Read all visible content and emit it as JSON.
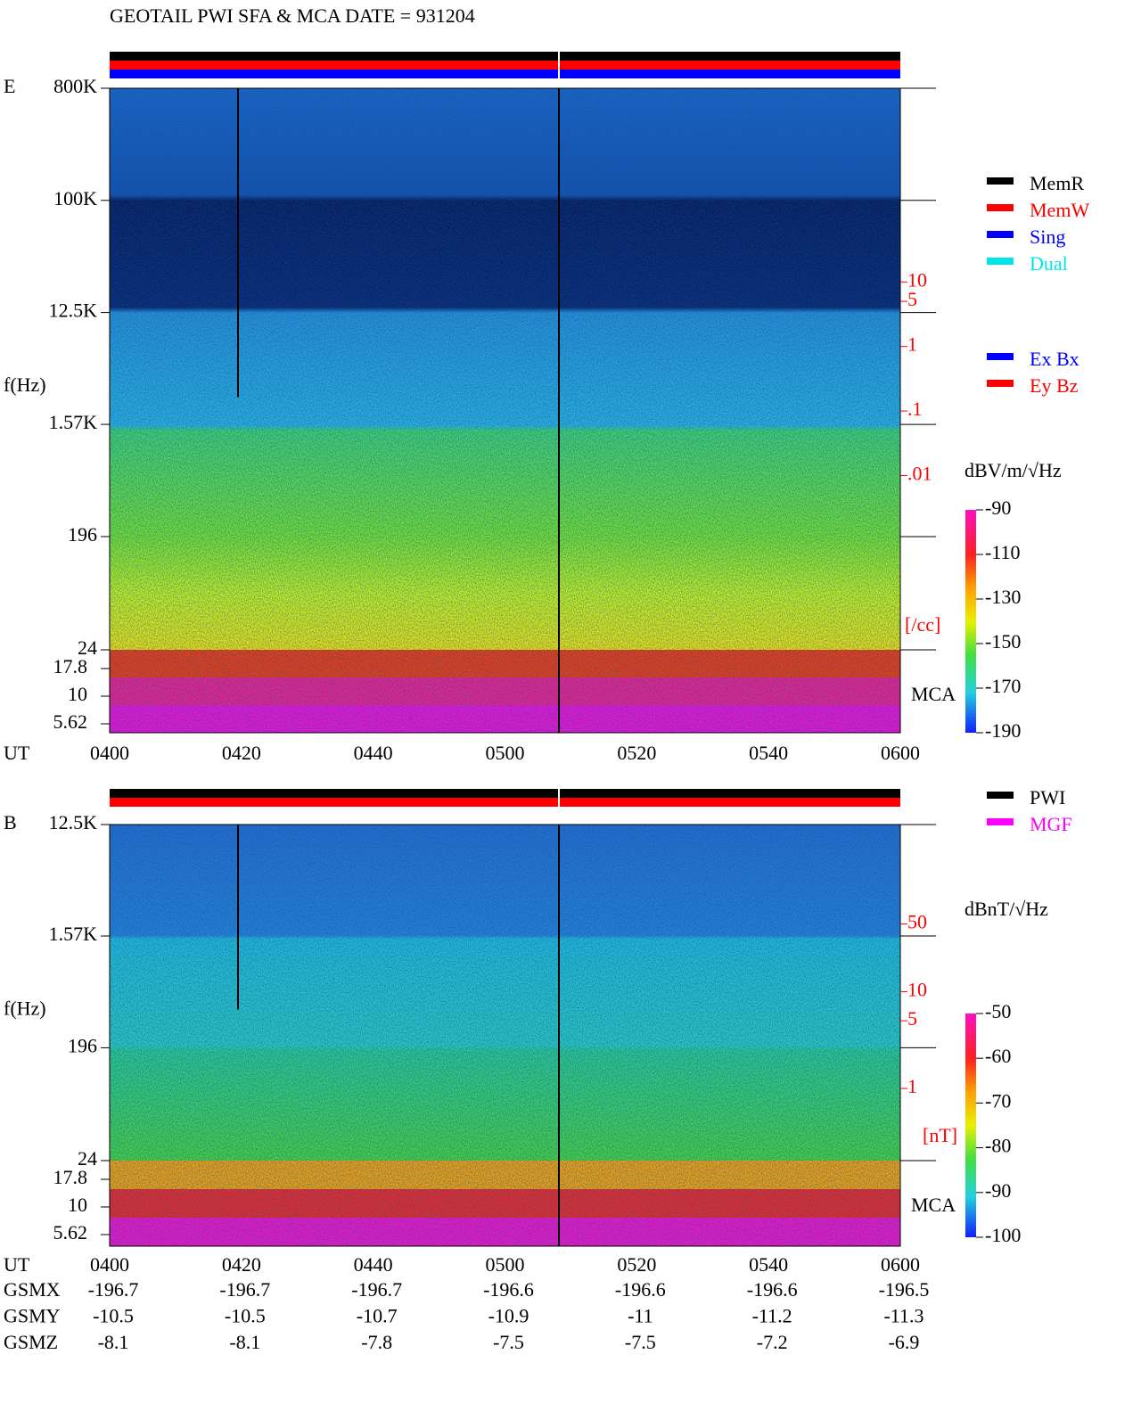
{
  "title": "GEOTAIL  PWI SFA & MCA   DATE = 931204",
  "chart_data": [
    {
      "type": "spectrogram",
      "panel_label": "E",
      "ylabel": "f(Hz)",
      "xlabel": "UT",
      "xticks": [
        "0400",
        "0420",
        "0440",
        "0500",
        "0520",
        "0540",
        "0600"
      ],
      "log_y": true,
      "ylim": [
        24,
        800000
      ],
      "yticks": [
        24,
        196,
        {
          "value": 1570,
          "label": "1.57K"
        },
        {
          "value": 12500,
          "label": "12.5K"
        },
        {
          "value": 100000,
          "label": "100K"
        },
        {
          "value": 800000,
          "label": "800K"
        }
      ],
      "mca_label": "MCA",
      "mca_yticks": [
        17.8,
        10,
        5.62
      ],
      "colorbar_label": "dBV/m/√Hz",
      "colorbar_lim": [
        -190,
        -90
      ],
      "colorbar_ticks": [
        -90,
        -110,
        -130,
        -150,
        -170,
        -190
      ],
      "density_lim": [
        2e-05,
        10000
      ],
      "density_ticks": [
        10,
        5,
        1,
        {
          "value": 0.1,
          "label": ".1"
        },
        {
          "value": 0.01,
          "label": ".01"
        }
      ],
      "density_unit": "[/cc]",
      "legend": [
        {
          "name": "MemR",
          "color": "#000000"
        },
        {
          "name": "MemW",
          "color": "#ff0000"
        },
        {
          "name": "Sing",
          "color": "#0000ff"
        },
        {
          "name": "Dual",
          "color": "#00e5e5"
        }
      ],
      "legend2": [
        {
          "name": "Ex Bx",
          "color": "#0000ff"
        },
        {
          "name": "Ey Bz",
          "color": "#ff0000"
        }
      ]
    },
    {
      "type": "spectrogram",
      "panel_label": "B",
      "ylabel": "f(Hz)",
      "xlabel": "UT",
      "xticks": [
        "0400",
        "0420",
        "0440",
        "0500",
        "0520",
        "0540",
        "0600"
      ],
      "log_y": true,
      "ylim": [
        24,
        12500
      ],
      "yticks": [
        24,
        196,
        {
          "value": 1570,
          "label": "1.57K"
        },
        {
          "value": 12500,
          "label": "12.5K"
        }
      ],
      "mca_label": "MCA",
      "mca_yticks": [
        17.8,
        10,
        5.62
      ],
      "colorbar_label": "dBnT/√Hz",
      "colorbar_lim": [
        -100,
        -50
      ],
      "colorbar_ticks": [
        -50,
        -60,
        -70,
        -80,
        -90,
        -100
      ],
      "density_lim": [
        0.18,
        530
      ],
      "density_ticks": [
        50,
        10,
        5,
        1
      ],
      "density_unit": "[nT]",
      "legend": [
        {
          "name": "PWI",
          "color": "#000000"
        },
        {
          "name": "MGF",
          "color": "#ff00ff"
        }
      ]
    }
  ],
  "ephemeris": {
    "rows": [
      {
        "label": "GSMX",
        "values": [
          -196.7,
          -196.7,
          -196.7,
          -196.6,
          -196.6,
          -196.6,
          -196.5
        ]
      },
      {
        "label": "GSMY",
        "values": [
          -10.5,
          -10.5,
          -10.7,
          -10.9,
          -11.0,
          -11.2,
          -11.3
        ]
      },
      {
        "label": "GSMZ",
        "values": [
          -8.1,
          -8.1,
          -7.8,
          -7.5,
          -7.5,
          -7.2,
          -6.9
        ]
      }
    ]
  }
}
